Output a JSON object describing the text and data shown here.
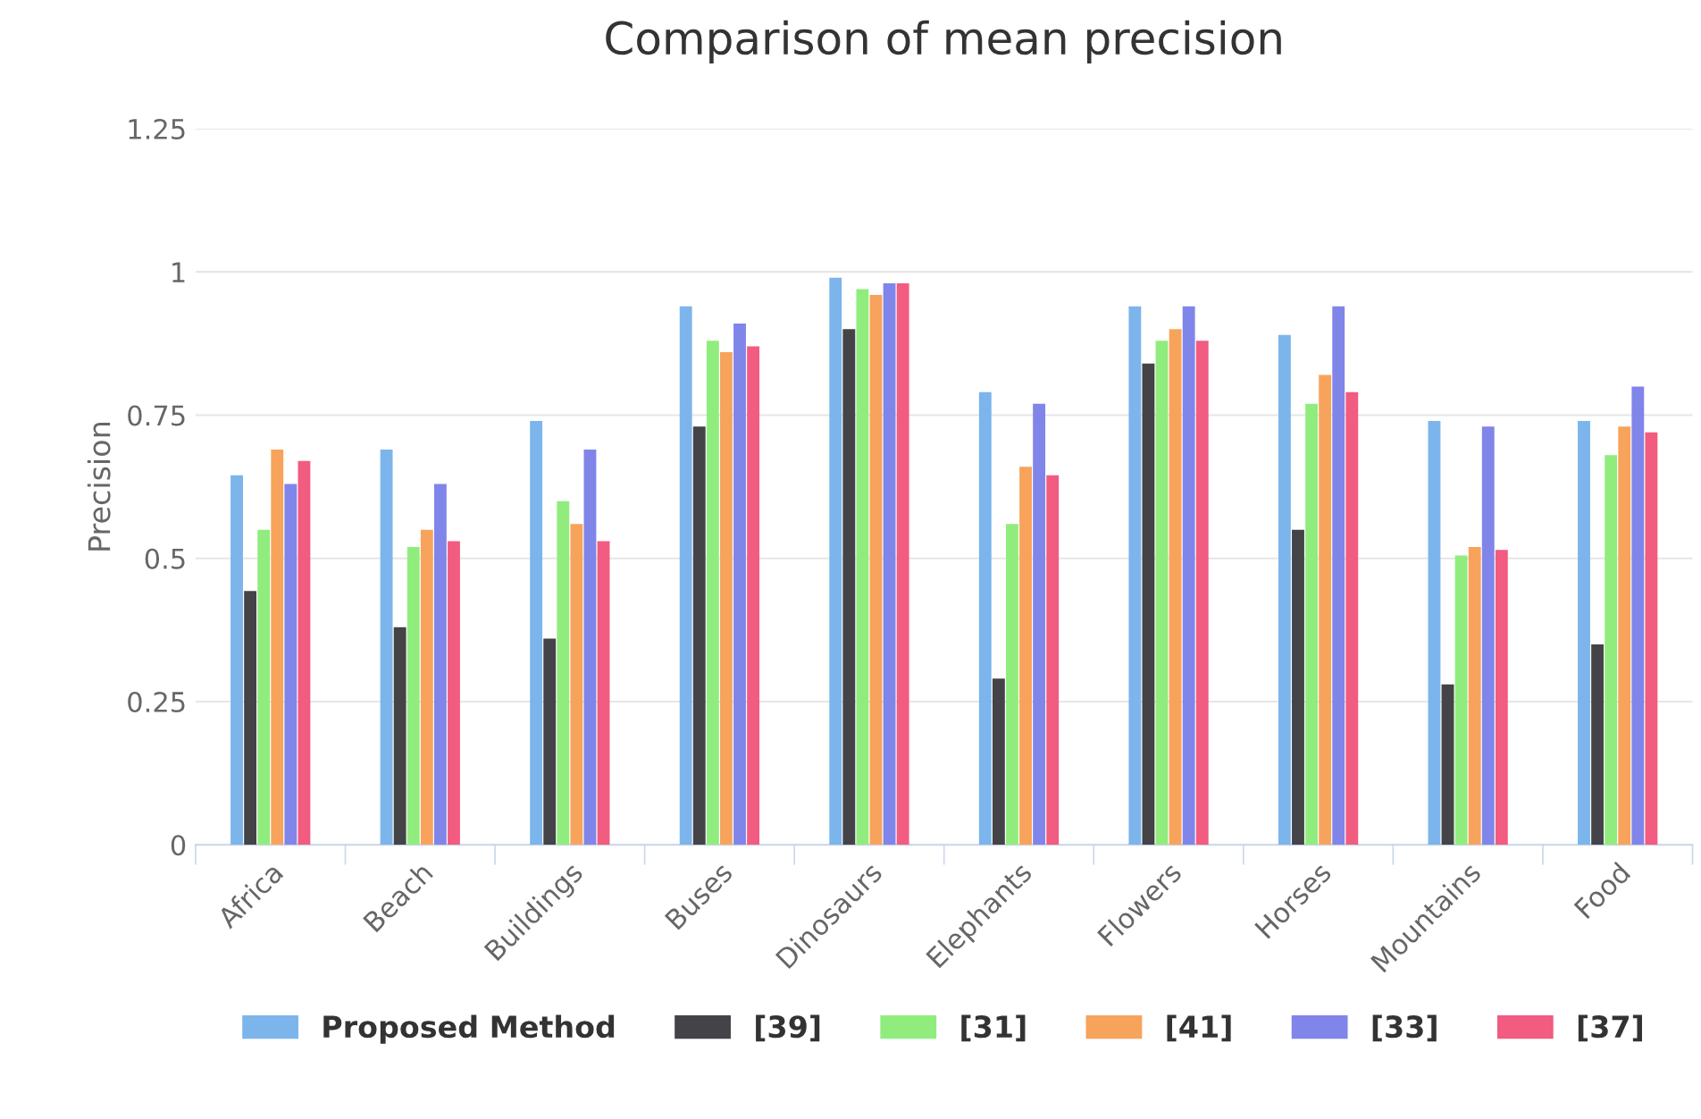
{
  "chart_data": {
    "type": "bar",
    "title": "Comparison of mean precision",
    "ylabel": "Precision",
    "categories": [
      "Africa",
      "Beach",
      "Buildings",
      "Buses",
      "Dinosaurs",
      "Elephants",
      "Flowers",
      "Horses",
      "Mountains",
      "Food"
    ],
    "series": [
      {
        "name": "Proposed Method",
        "color": "#7cb5ec",
        "values": [
          0.645,
          0.69,
          0.74,
          0.94,
          0.99,
          0.79,
          0.94,
          0.89,
          0.74,
          0.74
        ]
      },
      {
        "name": "[39]",
        "color": "#434348",
        "values": [
          0.443,
          0.38,
          0.36,
          0.73,
          0.9,
          0.29,
          0.84,
          0.55,
          0.28,
          0.35
        ]
      },
      {
        "name": "[31]",
        "color": "#90ed7d",
        "values": [
          0.55,
          0.52,
          0.6,
          0.88,
          0.97,
          0.56,
          0.88,
          0.77,
          0.505,
          0.68
        ]
      },
      {
        "name": "[41]",
        "color": "#f7a35c",
        "values": [
          0.69,
          0.55,
          0.56,
          0.86,
          0.96,
          0.66,
          0.9,
          0.82,
          0.52,
          0.73
        ]
      },
      {
        "name": "[33]",
        "color": "#8085e9",
        "values": [
          0.63,
          0.63,
          0.69,
          0.91,
          0.98,
          0.77,
          0.94,
          0.94,
          0.73,
          0.8
        ]
      },
      {
        "name": "[37]",
        "color": "#f15c80",
        "values": [
          0.67,
          0.53,
          0.53,
          0.87,
          0.98,
          0.645,
          0.88,
          0.79,
          0.515,
          0.72
        ]
      }
    ],
    "ylim": [
      0,
      1.25
    ],
    "yticks": [
      0,
      0.25,
      0.5,
      0.75,
      1,
      1.25
    ],
    "grid": "y",
    "legend": "bottom"
  }
}
